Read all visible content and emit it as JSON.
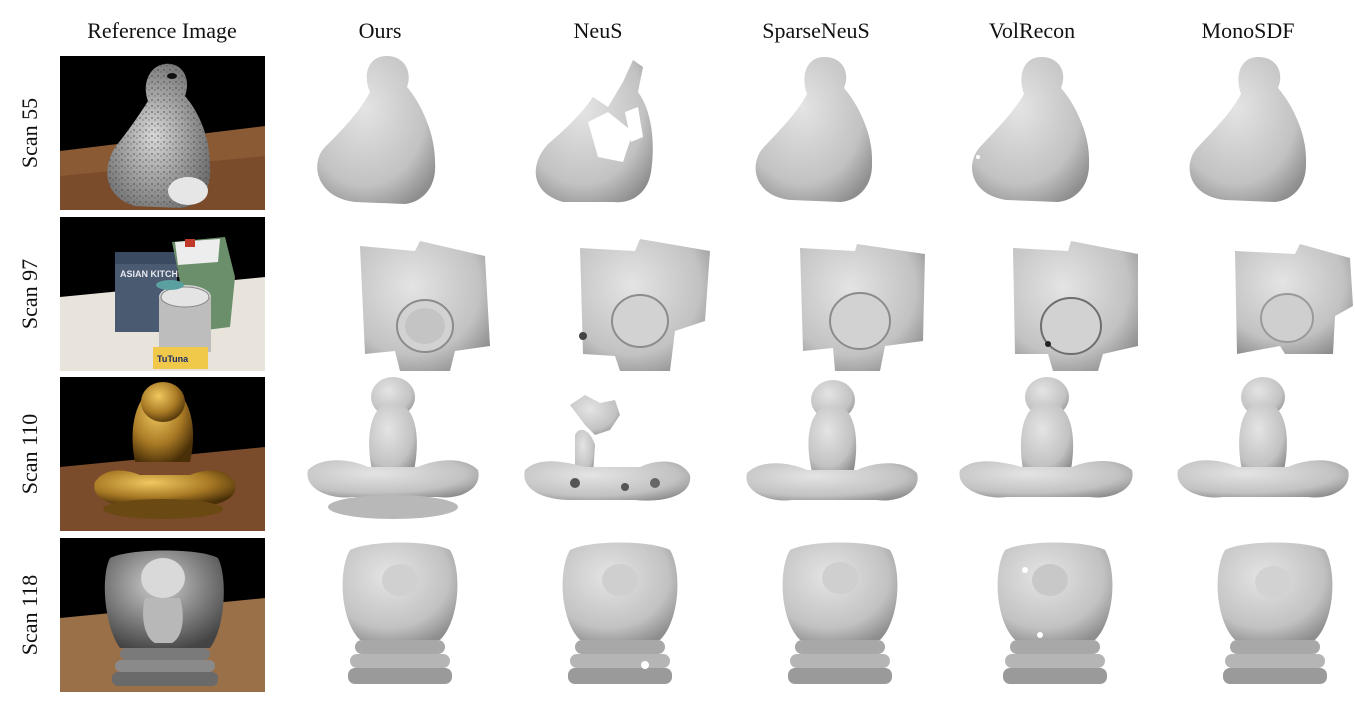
{
  "columns": [
    "Reference Image",
    "Ours",
    "NeuS",
    "SparseNeuS",
    "VolRecon",
    "MonoSDF"
  ],
  "rows": [
    {
      "label": "Scan 55",
      "object": "rabbit-statue"
    },
    {
      "label": "Scan 97",
      "object": "food-packages-and-can"
    },
    {
      "label": "Scan 110",
      "object": "meditating-figure"
    },
    {
      "label": "Scan 118",
      "object": "angel-in-hands"
    }
  ],
  "reference_label_texts": {
    "asian_kitchen": "ASIAN KITCHEN",
    "tuna": "TuTuna"
  },
  "colors": {
    "mesh": "#c9c9c9",
    "mesh_shadow": "#8e8e8e",
    "ref_background": "#000000",
    "table": "#8a5a34",
    "gold": "#b08430"
  }
}
